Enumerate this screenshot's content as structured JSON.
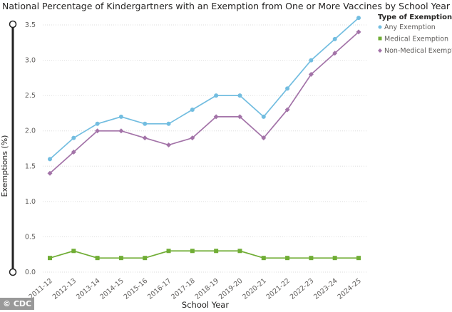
{
  "chart_data": {
    "type": "line",
    "title": "National Percentage of Kindergartners with an Exemption from One or More Vaccines by School Year",
    "xlabel": "School Year",
    "ylabel": "Exemptions (%)",
    "ylim": [
      0,
      3.5
    ],
    "yticks": [
      "0.0",
      "0.5",
      "1.0",
      "1.5",
      "2.0",
      "2.5",
      "3.0",
      "3.5"
    ],
    "grid": true,
    "legend_title": "Type of Exemption",
    "legend_position": "top-right",
    "categories": [
      "2011-12",
      "2012-13",
      "2013-14",
      "2014-15",
      "2015-16",
      "2016-17",
      "2017-18",
      "2018-19",
      "2019-20",
      "2020-21",
      "2021-22",
      "2022-23",
      "2023-24",
      "2024-25"
    ],
    "series": [
      {
        "name": "Any Exemption",
        "color": "#72bde0",
        "marker": "circle",
        "values": [
          1.6,
          1.9,
          2.1,
          2.2,
          2.1,
          2.1,
          2.3,
          2.5,
          2.5,
          2.2,
          2.6,
          3.0,
          3.3,
          3.6
        ]
      },
      {
        "name": "Medical Exemption",
        "color": "#70ad35",
        "marker": "square",
        "values": [
          0.2,
          0.3,
          0.2,
          0.2,
          0.2,
          0.3,
          0.3,
          0.3,
          0.3,
          0.2,
          0.2,
          0.2,
          0.2,
          0.2
        ]
      },
      {
        "name": "Non-Medical Exemption",
        "color": "#a373a8",
        "marker": "diamond",
        "values": [
          1.4,
          1.7,
          2.0,
          2.0,
          1.9,
          1.8,
          1.9,
          2.2,
          2.2,
          1.9,
          2.3,
          2.8,
          3.1,
          3.4
        ]
      }
    ]
  },
  "watermark": "© CDC"
}
